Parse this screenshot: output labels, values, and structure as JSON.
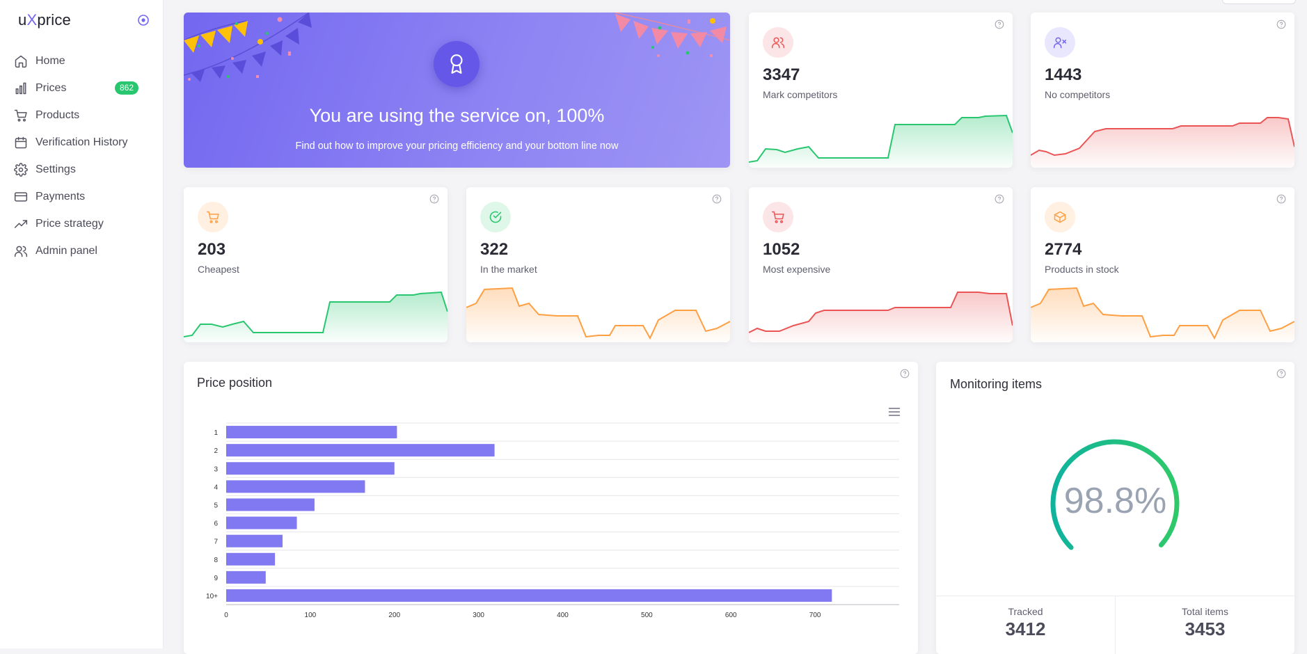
{
  "app": {
    "logo_prefix": "u",
    "logo_x": "X",
    "logo_suffix": "price"
  },
  "sidebar": {
    "items": [
      {
        "label": "Home",
        "icon": "home-icon"
      },
      {
        "label": "Prices",
        "icon": "bar-chart-icon",
        "badge": "862"
      },
      {
        "label": "Products",
        "icon": "cart-icon"
      },
      {
        "label": "Verification History",
        "icon": "calendar-icon"
      },
      {
        "label": "Settings",
        "icon": "gear-icon"
      },
      {
        "label": "Payments",
        "icon": "credit-card-icon"
      },
      {
        "label": "Price strategy",
        "icon": "trending-up-icon"
      },
      {
        "label": "Admin panel",
        "icon": "users-icon"
      }
    ]
  },
  "hero": {
    "title": "You are using the service on, 100%",
    "subtitle": "Find out how to improve your pricing efficiency and your bottom line now",
    "icon": "award-icon"
  },
  "stats": [
    {
      "value": "3347",
      "label": "Mark competitors",
      "icon": "users-icon",
      "color": "#ea5455",
      "spark_color": "#28c76f"
    },
    {
      "value": "1443",
      "label": "No competitors",
      "icon": "user-x-icon",
      "color": "#7367f0",
      "spark_color": "#ea5455"
    },
    {
      "value": "203",
      "label": "Cheapest",
      "icon": "cart-icon",
      "color": "#ff9f43",
      "spark_color": "#28c76f"
    },
    {
      "value": "322",
      "label": "In the market",
      "icon": "check-circle-icon",
      "color": "#28c76f",
      "spark_color": "#ff9f43"
    },
    {
      "value": "1052",
      "label": "Most expensive",
      "icon": "cart-icon",
      "color": "#ea5455",
      "spark_color": "#ea5455"
    },
    {
      "value": "2774",
      "label": "Products in stock",
      "icon": "box-icon",
      "color": "#ff9f43",
      "spark_color": "#ff9f43"
    }
  ],
  "price_position": {
    "title": "Price position",
    "menu_icon": "hamburger-menu-icon"
  },
  "monitoring": {
    "title": "Monitoring items",
    "percent_text": "98.8%",
    "percent": 98.8,
    "tracked_label": "Tracked",
    "tracked_value": "3412",
    "total_label": "Total items",
    "total_value": "3453"
  },
  "chart_data": {
    "type": "bar",
    "orientation": "horizontal",
    "categories": [
      "1",
      "2",
      "3",
      "4",
      "5",
      "6",
      "7",
      "8",
      "9",
      "10+"
    ],
    "values": [
      203,
      319,
      200,
      165,
      105,
      84,
      67,
      58,
      47,
      720
    ],
    "xlim": [
      0,
      800
    ],
    "xticks": [
      0,
      100,
      200,
      300,
      400,
      500,
      600,
      700
    ],
    "color": "#8179f2",
    "grid": true
  }
}
